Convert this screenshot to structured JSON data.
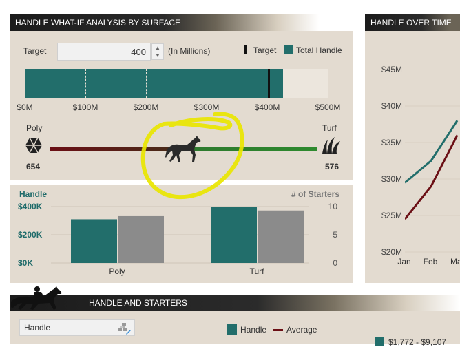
{
  "whatif": {
    "title": "HANDLE WHAT-IF ANALYSIS BY SURFACE",
    "target_label": "Target",
    "target_value": "400",
    "units": "(In Millions)",
    "legend_target": "Target",
    "legend_total": "Total Handle",
    "bar_axis": [
      "$0M",
      "$100M",
      "$200M",
      "$300M",
      "$400M",
      "$500M"
    ],
    "bar_fill_fraction": 0.85,
    "target_fraction": 0.8,
    "left_label": "Poly",
    "right_label": "Turf",
    "left_value": "654",
    "right_value": "576",
    "slider_fraction": 0.5
  },
  "handle_chart": {
    "left_title": "Handle",
    "right_title": "# of Starters",
    "y_left": [
      "$400K",
      "$200K",
      "$0K"
    ],
    "y_right": [
      "10",
      "5",
      "0"
    ],
    "categories": [
      "Poly",
      "Turf"
    ]
  },
  "over_time": {
    "title": "HANDLE OVER TIME",
    "y_ticks": [
      "$45M",
      "$40M",
      "$35M",
      "$30M",
      "$25M",
      "$20M"
    ],
    "x_ticks": [
      "Jan",
      "Feb",
      "Ma"
    ]
  },
  "starters": {
    "title": "HANDLE AND STARTERS",
    "dropdown_value": "Handle",
    "legend_handle": "Handle",
    "legend_average": "Average",
    "range_label": "$1,772 - $9,107"
  },
  "chart_data": [
    {
      "type": "bar",
      "title": "",
      "categories": [
        "Poly",
        "Turf"
      ],
      "series": [
        {
          "name": "Handle",
          "values": [
            310000,
            400000
          ]
        },
        {
          "name": "# of Starters",
          "values": [
            8.3,
            9.3
          ]
        }
      ],
      "ylim_left": [
        0,
        400000
      ],
      "ylim_right": [
        0,
        10
      ]
    },
    {
      "type": "line",
      "title": "HANDLE OVER TIME",
      "x": [
        "Jan",
        "Feb",
        "Mar"
      ],
      "series": [
        {
          "values": [
            29.5,
            32.5,
            38.0
          ]
        },
        {
          "values": [
            24.5,
            29.0,
            36.0
          ]
        }
      ],
      "ylim": [
        20,
        45
      ]
    }
  ],
  "colors": {
    "teal": "#226e6b",
    "gray": "#8b8b8b",
    "maroon": "#6b0f15",
    "panel": "#e3dbd0",
    "highlight": "#e9e600"
  }
}
